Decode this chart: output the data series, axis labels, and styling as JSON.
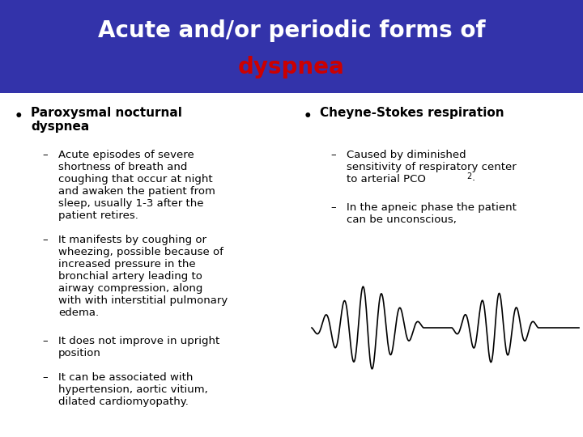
{
  "title_line1": "Acute and/or periodic forms of",
  "title_line2": "dyspnea",
  "title_bg_color": "#3333AA",
  "title_text_color1": "#FFFFFF",
  "title_text_color2": "#CC0000",
  "body_bg_color": "#FFFFFF",
  "left_bullet": "Paroxysmal nocturnal\ndyspnea",
  "left_items": [
    "Acute episodes of severe\nshortness of breath and\ncoughing that occur at night\nand awaken the patient from\nsleep, usually 1-3 after the\npatient retires.",
    "It manifests by coughing or\nwheezing, possible because of\nincreased pressure in the\nbronchial artery leading to\nairway compression, along\nwith with interstitial pulmonary\nedema.",
    "It does not improve in upright\nposition",
    "It can be associated with\nhypertension, aortic vitium,\ndilated cardiomyopathy."
  ],
  "right_bullet": "Cheyne-Stokes respiration",
  "right_items_part1": "Caused by diminished\nsensitivity of respiratory center\nto arterial PCO",
  "right_items_part2": "2.",
  "right_item2": "In the apneic phase the patient\ncan be unconscious,",
  "title_fontsize": 20,
  "bullet_fontsize": 11,
  "item_fontsize": 9.5
}
